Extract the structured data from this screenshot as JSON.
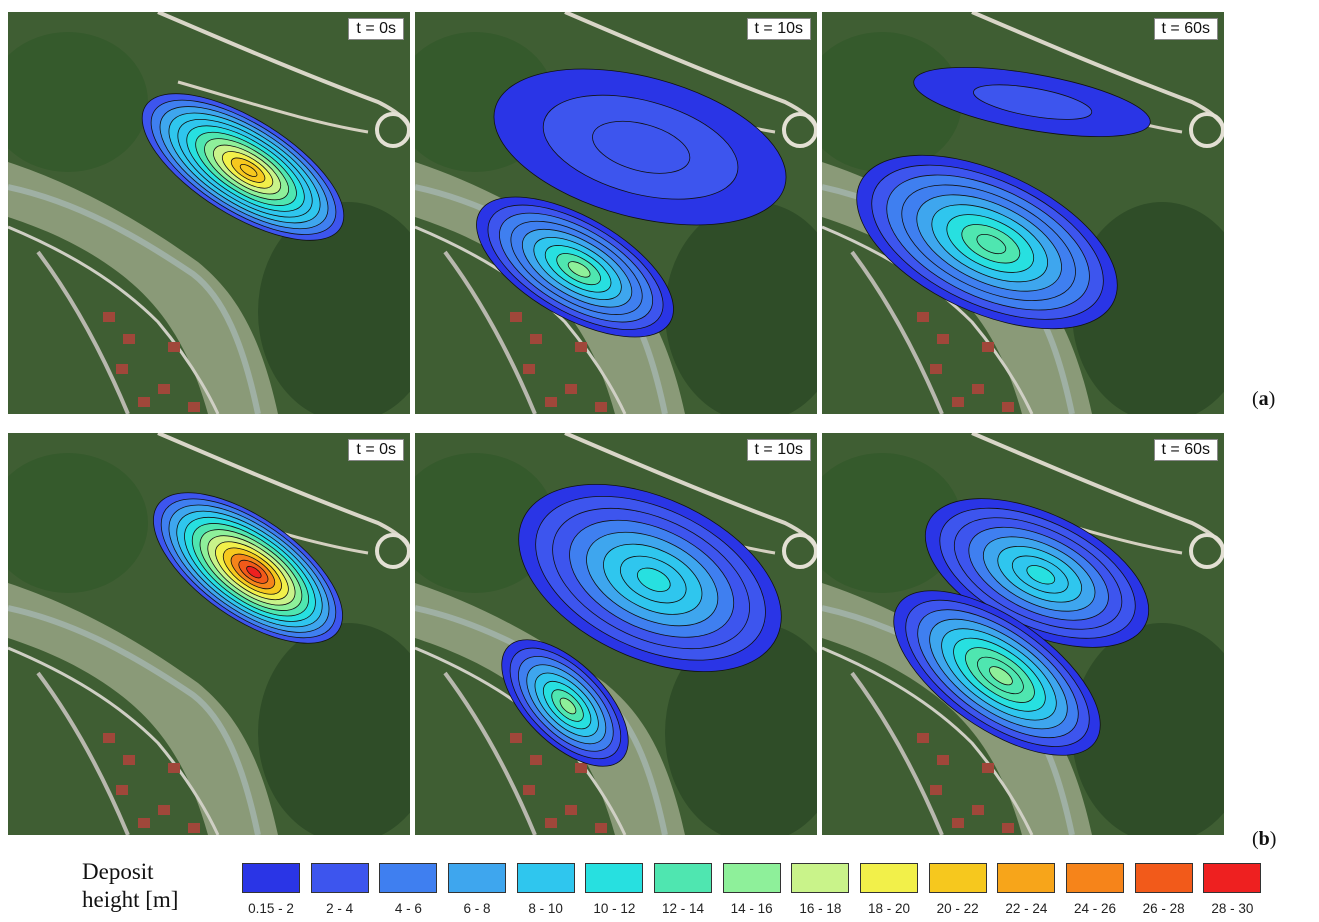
{
  "rows": [
    {
      "label_open": "(",
      "label_letter": "a",
      "label_close": ")",
      "panels": [
        {
          "time": "t = 0s"
        },
        {
          "time": "t = 10s"
        },
        {
          "time": "t = 60s"
        }
      ]
    },
    {
      "label_open": "(",
      "label_letter": "b",
      "label_close": ")",
      "panels": [
        {
          "time": "t = 0s"
        },
        {
          "time": "t = 10s"
        },
        {
          "time": "t = 60s"
        }
      ]
    }
  ],
  "legend": {
    "title_line1": "Deposit",
    "title_line2": "height [m]",
    "classes": [
      {
        "label": "0.15 - 2",
        "color": "#2a35e6"
      },
      {
        "label": "2 - 4",
        "color": "#3d55ee"
      },
      {
        "label": "4 - 6",
        "color": "#3f7ff0"
      },
      {
        "label": "6 - 8",
        "color": "#3ea6ee"
      },
      {
        "label": "8 - 10",
        "color": "#2fc6ee"
      },
      {
        "label": "10 - 12",
        "color": "#27e0e0"
      },
      {
        "label": "12 - 14",
        "color": "#4fe6b0"
      },
      {
        "label": "14 - 16",
        "color": "#8ef09a"
      },
      {
        "label": "16 - 18",
        "color": "#c9f38a"
      },
      {
        "label": "18 - 20",
        "color": "#f2f04a"
      },
      {
        "label": "20 - 22",
        "color": "#f6c81e"
      },
      {
        "label": "22 - 24",
        "color": "#f7a51a"
      },
      {
        "label": "24 - 26",
        "color": "#f6841a"
      },
      {
        "label": "26 - 28",
        "color": "#f25a1a"
      },
      {
        "label": "28 - 30",
        "color": "#ee2020"
      }
    ]
  }
}
